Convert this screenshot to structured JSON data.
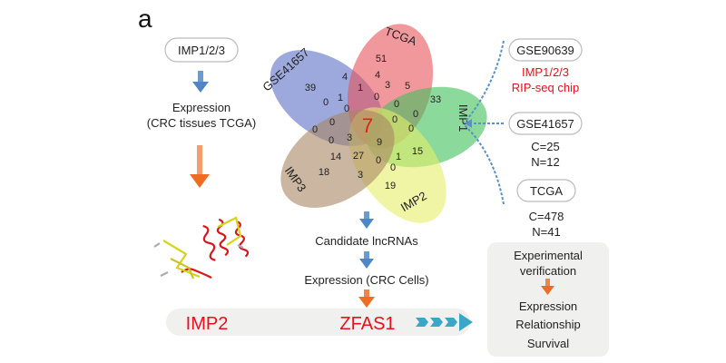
{
  "panel_label": "a",
  "left": {
    "start_box": "IMP1/2/3",
    "expression_line1": "Expression",
    "expression_line2": "(CRC tissues TCGA)",
    "protein_icon": "protein-structure-ribbon"
  },
  "venn": {
    "sets": [
      {
        "name": "GSE41657",
        "color": "#5b6fc4"
      },
      {
        "name": "TCGA",
        "color": "#e8545c"
      },
      {
        "name": "IMP1",
        "color": "#3fbf5a"
      },
      {
        "name": "IMP2",
        "color": "#e6ef6a"
      },
      {
        "name": "IMP3",
        "color": "#a98563"
      }
    ],
    "center_value": "7",
    "center_color": "#e0201a",
    "counts": [
      "51",
      "4",
      "4",
      "39",
      "1",
      "3",
      "5",
      "33",
      "0",
      "1",
      "0",
      "0",
      "0",
      "0",
      "0",
      "0",
      "0",
      "0",
      "0",
      "3",
      "9",
      "1",
      "15",
      "14",
      "27",
      "0",
      "18",
      "3",
      "0",
      "19"
    ]
  },
  "middle": {
    "candidate": "Candidate lncRNAs",
    "expression_cells": "Expression (CRC Cells)"
  },
  "bottom": {
    "imp2": "IMP2",
    "zfas1": "ZFAS1",
    "highlight_color": "#e8101a"
  },
  "right": {
    "gse90639": "GSE90639",
    "rip_line1": "IMP1/2/3",
    "rip_line2": "RIP-seq chip",
    "gse41657": "GSE41657",
    "gse41657_c": "C=25",
    "gse41657_n": "N=12",
    "tcga": "TCGA",
    "tcga_c": "C=478",
    "tcga_n": "N=41"
  },
  "verification": {
    "title1": "Experimental",
    "title2": "verification",
    "items": [
      "Expression",
      "Relationship",
      "Survival"
    ]
  }
}
